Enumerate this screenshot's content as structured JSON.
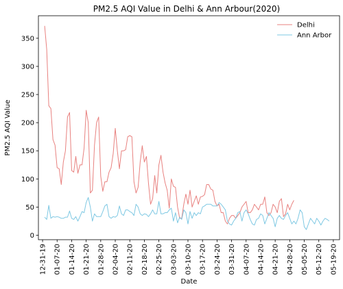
{
  "chart_data": {
    "type": "line",
    "title": "PM2.5 AQI Value in Delhi & Ann Arbour(2020)",
    "xlabel": "Date",
    "ylabel": "PM2.5 AQI Value",
    "ylim": [
      -8,
      390
    ],
    "yticks": [
      0,
      50,
      100,
      150,
      200,
      250,
      300,
      350
    ],
    "xlim": [
      "2019-12-29",
      "2020-05-22"
    ],
    "xticks": [
      {
        "date": "2019-12-31",
        "label": "12-31-19"
      },
      {
        "date": "2020-01-07",
        "label": "01-07-20"
      },
      {
        "date": "2020-01-14",
        "label": "01-14-20"
      },
      {
        "date": "2020-01-21",
        "label": "01-21-20"
      },
      {
        "date": "2020-01-28",
        "label": "01-28-20"
      },
      {
        "date": "2020-02-04",
        "label": "02-04-20"
      },
      {
        "date": "2020-02-11",
        "label": "02-11-20"
      },
      {
        "date": "2020-02-18",
        "label": "02-18-20"
      },
      {
        "date": "2020-02-25",
        "label": "02-25-20"
      },
      {
        "date": "2020-03-03",
        "label": "03-03-20"
      },
      {
        "date": "2020-03-10",
        "label": "03-10-20"
      },
      {
        "date": "2020-03-17",
        "label": "03-17-20"
      },
      {
        "date": "2020-03-24",
        "label": "03-24-20"
      },
      {
        "date": "2020-03-31",
        "label": "03-31-20"
      },
      {
        "date": "2020-04-07",
        "label": "04-07-20"
      },
      {
        "date": "2020-04-14",
        "label": "04-14-20"
      },
      {
        "date": "2020-04-21",
        "label": "04-21-20"
      },
      {
        "date": "2020-04-28",
        "label": "04-28-20"
      },
      {
        "date": "2020-05-05",
        "label": "05-05-20"
      },
      {
        "date": "2020-05-12",
        "label": "05-12-20"
      },
      {
        "date": "2020-05-19",
        "label": "05-19-20"
      }
    ],
    "grid": false,
    "legend": "top-right",
    "series": [
      {
        "name": "Delhi",
        "color": "#e8817f",
        "start_date": "2020-01-01",
        "values": [
          372,
          330,
          230,
          225,
          170,
          160,
          120,
          118,
          90,
          130,
          150,
          210,
          218,
          115,
          112,
          140,
          110,
          125,
          125,
          155,
          222,
          200,
          75,
          80,
          160,
          200,
          210,
          105,
          78,
          95,
          95,
          112,
          120,
          145,
          190,
          150,
          118,
          150,
          150,
          152,
          175,
          177,
          175,
          95,
          75,
          85,
          130,
          159,
          130,
          140,
          92,
          55,
          65,
          106,
          75,
          125,
          142,
          112,
          93,
          80,
          48,
          100,
          87,
          85,
          50,
          30,
          30,
          55,
          73,
          55,
          80,
          50,
          60,
          70,
          55,
          68,
          69,
          72,
          90,
          90,
          82,
          80,
          60,
          52,
          55,
          40,
          40,
          25,
          20,
          30,
          35,
          35,
          30,
          35,
          40,
          50,
          55,
          60,
          40,
          40,
          45,
          55,
          50,
          45,
          55,
          55,
          68,
          40,
          35,
          40,
          55,
          50,
          40,
          60,
          65,
          33,
          38,
          55,
          45,
          55,
          62
        ]
      },
      {
        "name": "Ann Arbor",
        "color": "#7ec8e3",
        "start_date": "2020-01-01",
        "values": [
          32,
          28,
          53,
          30,
          33,
          32,
          33,
          32,
          30,
          30,
          32,
          32,
          43,
          30,
          28,
          33,
          25,
          33,
          42,
          40,
          58,
          67,
          50,
          25,
          38,
          33,
          33,
          33,
          42,
          52,
          55,
          33,
          30,
          33,
          32,
          35,
          52,
          38,
          35,
          45,
          45,
          42,
          40,
          35,
          55,
          50,
          38,
          35,
          38,
          37,
          33,
          38,
          45,
          38,
          38,
          60,
          38,
          38,
          40,
          40,
          45,
          48,
          25,
          40,
          22,
          32,
          28,
          45,
          40,
          20,
          42,
          30,
          40,
          35,
          40,
          38,
          50,
          52,
          55,
          55,
          55,
          52,
          52,
          52,
          58,
          55,
          50,
          45,
          25,
          20,
          18,
          25,
          30,
          40,
          42,
          25,
          40,
          45,
          38,
          28,
          20,
          18,
          28,
          30,
          38,
          35,
          20,
          30,
          40,
          35,
          30,
          15,
          30,
          35,
          30,
          28,
          35,
          40,
          30,
          20,
          25,
          20,
          30,
          45,
          40,
          15,
          10,
          20,
          30,
          25,
          20,
          30,
          25,
          18,
          25,
          30,
          28,
          25
        ]
      }
    ]
  }
}
